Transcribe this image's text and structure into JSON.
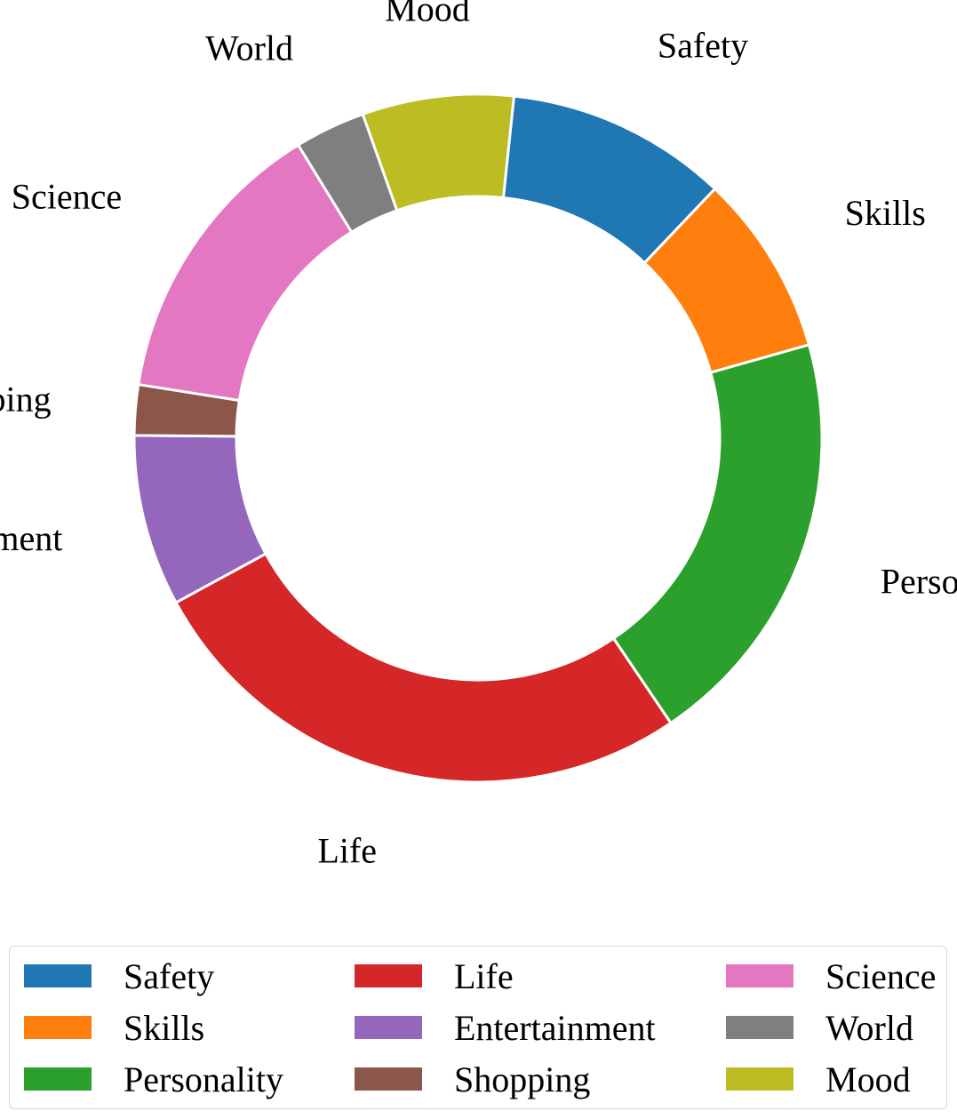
{
  "chart_data": {
    "type": "pie",
    "donut": true,
    "categories": [
      "Safety",
      "Skills",
      "Personality",
      "Life",
      "Entertainment",
      "Shopping",
      "Science",
      "World",
      "Mood"
    ],
    "values": [
      11,
      9,
      21,
      28,
      8.5,
      2.5,
      14.5,
      3.5,
      7.5
    ],
    "colors": [
      "#1f77b4",
      "#ff7f0e",
      "#2ca02c",
      "#d62728",
      "#9467bd",
      "#8c564b",
      "#e377c2",
      "#7f7f7f",
      "#bcbd22"
    ],
    "legend": {
      "placement": "bottom",
      "columns": [
        [
          "Safety",
          "Skills",
          "Personality"
        ],
        [
          "Life",
          "Entertainment",
          "Shopping"
        ],
        [
          "Science",
          "World",
          "Mood"
        ]
      ]
    },
    "title": ""
  }
}
